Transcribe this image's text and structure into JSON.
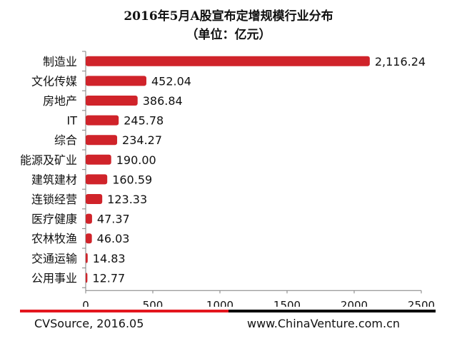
{
  "title_line1": "2016年5月A股宣布定增规模行业分布",
  "title_line2": "（单位：亿元）",
  "footer": {
    "source": "CVSource, 2016.05",
    "website": "www.ChinaVenture.com.cn"
  },
  "colors": {
    "bar": "#d0232a",
    "footer_red": "#e3161e",
    "footer_black": "#000000",
    "axis": "#7f7f7f"
  },
  "chart_data": {
    "type": "bar",
    "orientation": "horizontal",
    "categories": [
      "制造业",
      "文化传媒",
      "房地产",
      "IT",
      "综合",
      "能源及矿业",
      "建筑建材",
      "连锁经营",
      "医疗健康",
      "农林牧渔",
      "交通运输",
      "公用事业"
    ],
    "values": [
      2116.24,
      452.04,
      386.84,
      245.78,
      234.27,
      190.0,
      160.59,
      123.33,
      47.37,
      46.03,
      14.83,
      12.77
    ],
    "value_labels": [
      "2,116.24",
      "452.04",
      "386.84",
      "245.78",
      "234.27",
      "190.00",
      "160.59",
      "123.33",
      "47.37",
      "46.03",
      "14.83",
      "12.77"
    ],
    "xlim": [
      0,
      2500
    ],
    "xticks": [
      0,
      500,
      1000,
      1500,
      2000,
      2500
    ],
    "xtick_labels": [
      "0",
      "500",
      "1000",
      "1500",
      "2000",
      "2500"
    ],
    "grid": false,
    "legend": "none"
  }
}
